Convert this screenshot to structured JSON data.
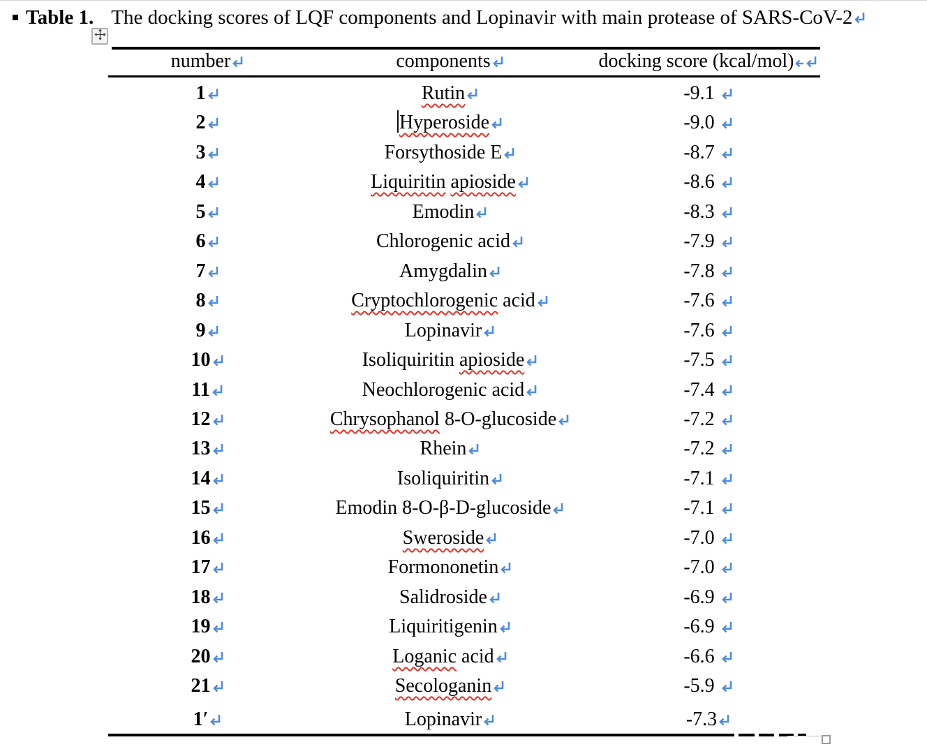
{
  "title": {
    "label": "Table 1.",
    "text": "The docking scores of LQF components and Lopinavir with main protease of SARS-CoV-2"
  },
  "table": {
    "columns": [
      "number",
      "components",
      "docking score (kcal/mol)"
    ],
    "rows": [
      {
        "number": "1",
        "component": [
          {
            "t": "Rutin",
            "wavy": true
          }
        ],
        "score": "-9.1",
        "space_before_mark": true
      },
      {
        "number": "2",
        "component": [
          {
            "t": "Hyperoside",
            "wavy": true
          }
        ],
        "score": "-9.0",
        "space_before_mark": true,
        "cursor": true
      },
      {
        "number": "3",
        "component": [
          {
            "t": "Forsythoside E",
            "wavy": false
          }
        ],
        "score": "-8.7",
        "space_before_mark": true
      },
      {
        "number": "4",
        "component": [
          {
            "t": "Liquiritin",
            "wavy": true
          },
          {
            "t": " ",
            "wavy": false
          },
          {
            "t": "apioside",
            "wavy": true
          }
        ],
        "score": "-8.6",
        "space_before_mark": true
      },
      {
        "number": "5",
        "component": [
          {
            "t": "Emodin",
            "wavy": false
          }
        ],
        "score": "-8.3",
        "space_before_mark": true
      },
      {
        "number": "6",
        "component": [
          {
            "t": "Chlorogenic acid",
            "wavy": false
          }
        ],
        "score": "-7.9",
        "space_before_mark": true
      },
      {
        "number": "7",
        "component": [
          {
            "t": "Amygdalin",
            "wavy": false
          }
        ],
        "score": "-7.8",
        "space_before_mark": true
      },
      {
        "number": "8",
        "component": [
          {
            "t": "Cryptochlorogenic",
            "wavy": true
          },
          {
            "t": " acid",
            "wavy": false
          }
        ],
        "score": "-7.6",
        "space_before_mark": true
      },
      {
        "number": "9",
        "component": [
          {
            "t": "Lopinavir",
            "wavy": false
          }
        ],
        "score": "-7.6",
        "space_before_mark": true
      },
      {
        "number": "10",
        "component": [
          {
            "t": "Isoliquiritin ",
            "wavy": false
          },
          {
            "t": "apioside",
            "wavy": true
          }
        ],
        "score": "-7.5",
        "space_before_mark": true
      },
      {
        "number": "11",
        "component": [
          {
            "t": "Neochlorogenic acid",
            "wavy": false
          }
        ],
        "score": "-7.4",
        "space_before_mark": true
      },
      {
        "number": "12",
        "component": [
          {
            "t": "Chrysophanol",
            "wavy": true
          },
          {
            "t": " 8-O-glucoside",
            "wavy": false
          }
        ],
        "score": "-7.2",
        "space_before_mark": true
      },
      {
        "number": "13",
        "component": [
          {
            "t": "Rhein",
            "wavy": false
          }
        ],
        "score": "-7.2",
        "space_before_mark": true
      },
      {
        "number": "14",
        "component": [
          {
            "t": "Isoliquiritin",
            "wavy": false
          }
        ],
        "score": "-7.1",
        "space_before_mark": true
      },
      {
        "number": "15",
        "component": [
          {
            "t": "Emodin 8-O-β-D-glucoside",
            "wavy": false
          }
        ],
        "score": "-7.1",
        "space_before_mark": true
      },
      {
        "number": "16",
        "component": [
          {
            "t": "Sweroside",
            "wavy": true
          }
        ],
        "score": "-7.0",
        "space_before_mark": true
      },
      {
        "number": "17",
        "component": [
          {
            "t": "Formononetin",
            "wavy": false
          }
        ],
        "score": "-7.0",
        "space_before_mark": true
      },
      {
        "number": "18",
        "component": [
          {
            "t": "Salidroside",
            "wavy": false
          }
        ],
        "score": "-6.9",
        "space_before_mark": true
      },
      {
        "number": "19",
        "component": [
          {
            "t": "Liquiritigenin",
            "wavy": false
          }
        ],
        "score": "-6.9",
        "space_before_mark": true
      },
      {
        "number": "20",
        "component": [
          {
            "t": "Loganic",
            "wavy": true
          },
          {
            "t": " acid",
            "wavy": false
          }
        ],
        "score": "-6.6",
        "space_before_mark": true
      },
      {
        "number": "21",
        "component": [
          {
            "t": "Secologanin",
            "wavy": true
          }
        ],
        "score": "-5.9",
        "space_before_mark": true
      },
      {
        "number": "1′",
        "component": [
          {
            "t": "Lopinavir",
            "wavy": false
          }
        ],
        "score": "-7.3",
        "space_before_mark": false
      }
    ]
  },
  "icons": {
    "return_mark": "pilcrow-return-arrow",
    "cell_end_mark": "left-arrow",
    "move_handle": "four-way-move-cross",
    "resize_handle": "small-square"
  },
  "colors": {
    "mark_blue": "#4d8ce1",
    "squiggle_red": "#e63228",
    "text": "#000000"
  }
}
